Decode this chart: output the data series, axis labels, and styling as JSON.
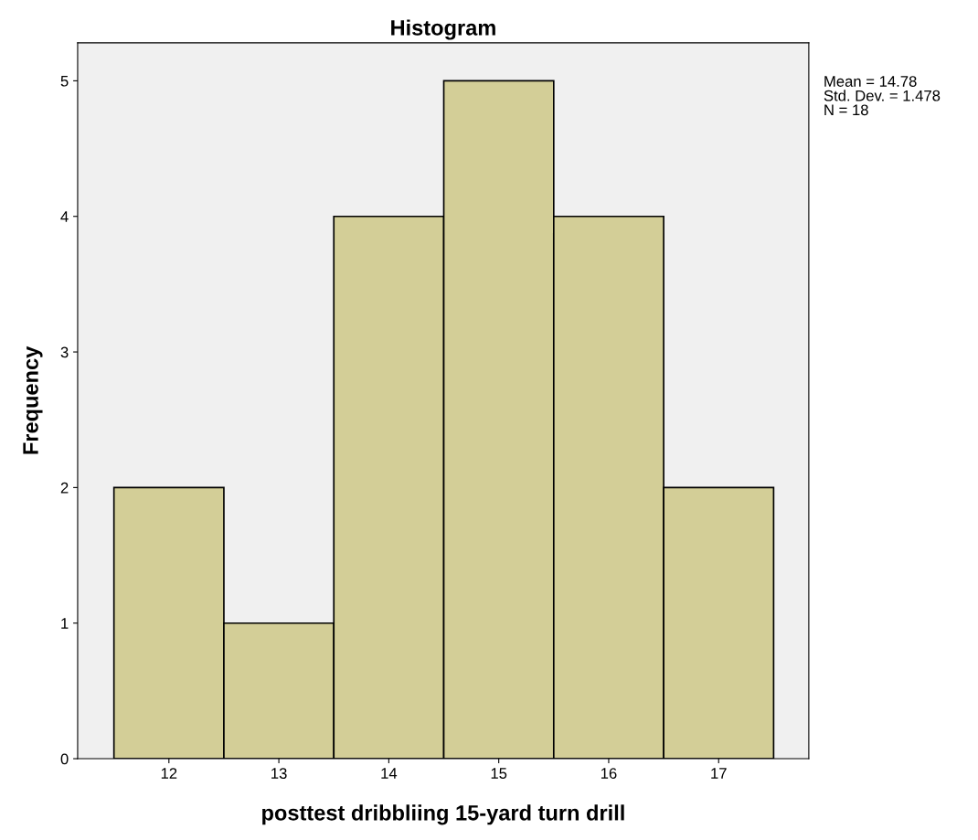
{
  "chart_data": {
    "type": "histogram",
    "title": "Histogram",
    "xlabel": "posttest dribbliing 15-yard turn drill",
    "ylabel": "Frequency",
    "bins": [
      11.5,
      12.5,
      13.5,
      14.5,
      15.5,
      16.5,
      17.5
    ],
    "values": [
      2,
      1,
      4,
      5,
      4,
      2
    ],
    "color": "#d3ce97",
    "xlim": [
      11.17,
      17.82
    ],
    "xticks": [
      12,
      13,
      14,
      15,
      16,
      17
    ],
    "ylim": [
      0,
      5.28
    ],
    "yticks": [
      0,
      1,
      2,
      3,
      4,
      5
    ],
    "grid": false,
    "legend": false,
    "annotations": [
      "Mean = 14.78",
      "Std. Dev. = 1.478",
      "N = 18"
    ]
  }
}
